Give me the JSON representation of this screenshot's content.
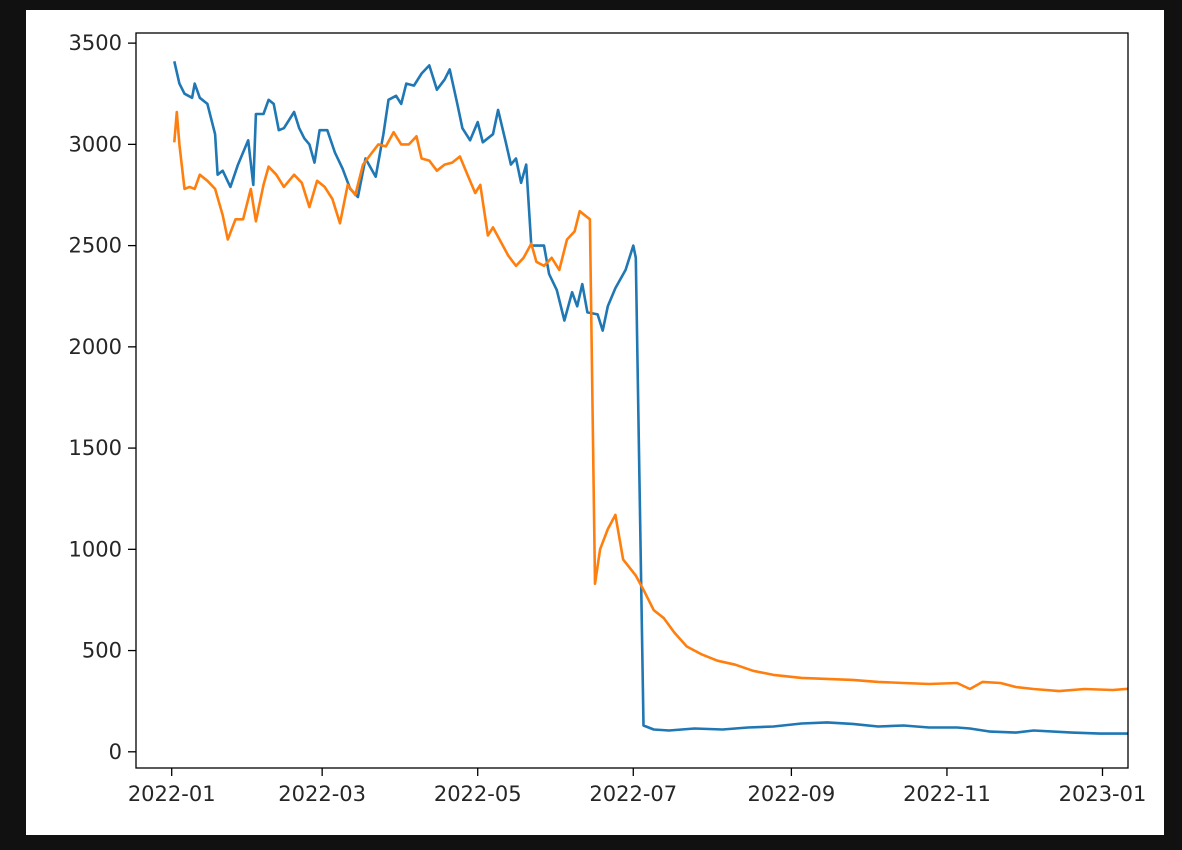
{
  "chart_data": {
    "type": "line",
    "title": "",
    "xlabel": "",
    "ylabel": "",
    "xlim": [
      "2021-12-18",
      "2023-01-11"
    ],
    "ylim": [
      -80,
      3550
    ],
    "xticks": [
      {
        "value": "2022-01-01",
        "label": "2022-01"
      },
      {
        "value": "2022-03-01",
        "label": "2022-03"
      },
      {
        "value": "2022-05-01",
        "label": "2022-05"
      },
      {
        "value": "2022-07-01",
        "label": "2022-07"
      },
      {
        "value": "2022-09-01",
        "label": "2022-09"
      },
      {
        "value": "2022-11-01",
        "label": "2022-11"
      },
      {
        "value": "2023-01-01",
        "label": "2023-01"
      }
    ],
    "yticks": [
      {
        "value": 0,
        "label": "0"
      },
      {
        "value": 500,
        "label": "500"
      },
      {
        "value": 1000,
        "label": "1000"
      },
      {
        "value": 1500,
        "label": "1500"
      },
      {
        "value": 2000,
        "label": "2000"
      },
      {
        "value": 2500,
        "label": "2500"
      },
      {
        "value": 3000,
        "label": "3000"
      },
      {
        "value": 3500,
        "label": "3500"
      }
    ],
    "grid": false,
    "legend": "none",
    "series": [
      {
        "color": "#1f77b4",
        "points": [
          [
            "2022-01-02",
            3410
          ],
          [
            "2022-01-04",
            3300
          ],
          [
            "2022-01-06",
            3250
          ],
          [
            "2022-01-09",
            3230
          ],
          [
            "2022-01-10",
            3300
          ],
          [
            "2022-01-12",
            3230
          ],
          [
            "2022-01-15",
            3200
          ],
          [
            "2022-01-18",
            3050
          ],
          [
            "2022-01-19",
            2850
          ],
          [
            "2022-01-21",
            2870
          ],
          [
            "2022-01-24",
            2790
          ],
          [
            "2022-01-27",
            2900
          ],
          [
            "2022-01-31",
            3020
          ],
          [
            "2022-02-02",
            2800
          ],
          [
            "2022-02-03",
            3150
          ],
          [
            "2022-02-06",
            3150
          ],
          [
            "2022-02-08",
            3220
          ],
          [
            "2022-02-10",
            3200
          ],
          [
            "2022-02-12",
            3070
          ],
          [
            "2022-02-14",
            3080
          ],
          [
            "2022-02-18",
            3160
          ],
          [
            "2022-02-20",
            3080
          ],
          [
            "2022-02-22",
            3030
          ],
          [
            "2022-02-24",
            3000
          ],
          [
            "2022-02-26",
            2910
          ],
          [
            "2022-02-28",
            3070
          ],
          [
            "2022-03-03",
            3070
          ],
          [
            "2022-03-06",
            2960
          ],
          [
            "2022-03-09",
            2880
          ],
          [
            "2022-03-12",
            2780
          ],
          [
            "2022-03-15",
            2740
          ],
          [
            "2022-03-18",
            2930
          ],
          [
            "2022-03-22",
            2840
          ],
          [
            "2022-03-25",
            3050
          ],
          [
            "2022-03-27",
            3220
          ],
          [
            "2022-03-30",
            3240
          ],
          [
            "2022-04-01",
            3200
          ],
          [
            "2022-04-03",
            3300
          ],
          [
            "2022-04-06",
            3290
          ],
          [
            "2022-04-09",
            3350
          ],
          [
            "2022-04-12",
            3390
          ],
          [
            "2022-04-15",
            3270
          ],
          [
            "2022-04-18",
            3320
          ],
          [
            "2022-04-20",
            3370
          ],
          [
            "2022-04-23",
            3200
          ],
          [
            "2022-04-25",
            3080
          ],
          [
            "2022-04-28",
            3020
          ],
          [
            "2022-05-01",
            3110
          ],
          [
            "2022-05-03",
            3010
          ],
          [
            "2022-05-07",
            3050
          ],
          [
            "2022-05-09",
            3170
          ],
          [
            "2022-05-12",
            3010
          ],
          [
            "2022-05-14",
            2900
          ],
          [
            "2022-05-16",
            2930
          ],
          [
            "2022-05-18",
            2810
          ],
          [
            "2022-05-20",
            2900
          ],
          [
            "2022-05-22",
            2500
          ],
          [
            "2022-05-27",
            2500
          ],
          [
            "2022-05-29",
            2360
          ],
          [
            "2022-06-01",
            2280
          ],
          [
            "2022-06-04",
            2130
          ],
          [
            "2022-06-07",
            2270
          ],
          [
            "2022-06-09",
            2200
          ],
          [
            "2022-06-11",
            2310
          ],
          [
            "2022-06-13",
            2170
          ],
          [
            "2022-06-17",
            2160
          ],
          [
            "2022-06-19",
            2080
          ],
          [
            "2022-06-21",
            2200
          ],
          [
            "2022-06-24",
            2290
          ],
          [
            "2022-06-28",
            2380
          ],
          [
            "2022-07-01",
            2500
          ],
          [
            "2022-07-02",
            2440
          ],
          [
            "2022-07-05",
            130
          ],
          [
            "2022-07-09",
            110
          ],
          [
            "2022-07-15",
            105
          ],
          [
            "2022-07-25",
            115
          ],
          [
            "2022-08-05",
            110
          ],
          [
            "2022-08-15",
            120
          ],
          [
            "2022-08-25",
            125
          ],
          [
            "2022-09-05",
            140
          ],
          [
            "2022-09-15",
            145
          ],
          [
            "2022-09-25",
            138
          ],
          [
            "2022-10-05",
            125
          ],
          [
            "2022-10-15",
            130
          ],
          [
            "2022-10-25",
            120
          ],
          [
            "2022-11-05",
            120
          ],
          [
            "2022-11-10",
            115
          ],
          [
            "2022-11-18",
            100
          ],
          [
            "2022-11-28",
            95
          ],
          [
            "2022-12-05",
            105
          ],
          [
            "2022-12-20",
            95
          ],
          [
            "2022-12-31",
            90
          ],
          [
            "2023-01-15",
            90
          ],
          [
            "2023-01-28",
            85
          ]
        ]
      },
      {
        "color": "#ff7f0e",
        "points": [
          [
            "2022-01-02",
            3010
          ],
          [
            "2022-01-03",
            3160
          ],
          [
            "2022-01-04",
            3000
          ],
          [
            "2022-01-06",
            2780
          ],
          [
            "2022-01-08",
            2790
          ],
          [
            "2022-01-10",
            2780
          ],
          [
            "2022-01-12",
            2850
          ],
          [
            "2022-01-15",
            2820
          ],
          [
            "2022-01-18",
            2780
          ],
          [
            "2022-01-21",
            2650
          ],
          [
            "2022-01-23",
            2530
          ],
          [
            "2022-01-26",
            2630
          ],
          [
            "2022-01-29",
            2630
          ],
          [
            "2022-02-01",
            2780
          ],
          [
            "2022-02-03",
            2620
          ],
          [
            "2022-02-06",
            2800
          ],
          [
            "2022-02-08",
            2890
          ],
          [
            "2022-02-11",
            2850
          ],
          [
            "2022-02-14",
            2790
          ],
          [
            "2022-02-18",
            2850
          ],
          [
            "2022-02-21",
            2810
          ],
          [
            "2022-02-24",
            2690
          ],
          [
            "2022-02-27",
            2820
          ],
          [
            "2022-03-02",
            2790
          ],
          [
            "2022-03-05",
            2730
          ],
          [
            "2022-03-08",
            2610
          ],
          [
            "2022-03-11",
            2800
          ],
          [
            "2022-03-14",
            2750
          ],
          [
            "2022-03-17",
            2900
          ],
          [
            "2022-03-20",
            2950
          ],
          [
            "2022-03-23",
            3000
          ],
          [
            "2022-03-26",
            2990
          ],
          [
            "2022-03-29",
            3060
          ],
          [
            "2022-04-01",
            3000
          ],
          [
            "2022-04-04",
            3000
          ],
          [
            "2022-04-07",
            3040
          ],
          [
            "2022-04-09",
            2930
          ],
          [
            "2022-04-12",
            2920
          ],
          [
            "2022-04-15",
            2870
          ],
          [
            "2022-04-18",
            2900
          ],
          [
            "2022-04-21",
            2910
          ],
          [
            "2022-04-24",
            2940
          ],
          [
            "2022-04-27",
            2850
          ],
          [
            "2022-04-30",
            2760
          ],
          [
            "2022-05-02",
            2800
          ],
          [
            "2022-05-05",
            2550
          ],
          [
            "2022-05-07",
            2590
          ],
          [
            "2022-05-10",
            2520
          ],
          [
            "2022-05-13",
            2450
          ],
          [
            "2022-05-16",
            2400
          ],
          [
            "2022-05-19",
            2440
          ],
          [
            "2022-05-22",
            2510
          ],
          [
            "2022-05-24",
            2420
          ],
          [
            "2022-05-27",
            2400
          ],
          [
            "2022-05-30",
            2440
          ],
          [
            "2022-06-02",
            2380
          ],
          [
            "2022-06-05",
            2530
          ],
          [
            "2022-06-08",
            2570
          ],
          [
            "2022-06-10",
            2670
          ],
          [
            "2022-06-14",
            2630
          ],
          [
            "2022-06-16",
            830
          ],
          [
            "2022-06-18",
            1000
          ],
          [
            "2022-06-21",
            1100
          ],
          [
            "2022-06-24",
            1170
          ],
          [
            "2022-06-27",
            950
          ],
          [
            "2022-07-02",
            870
          ],
          [
            "2022-07-05",
            800
          ],
          [
            "2022-07-09",
            700
          ],
          [
            "2022-07-13",
            660
          ],
          [
            "2022-07-17",
            590
          ],
          [
            "2022-07-22",
            520
          ],
          [
            "2022-07-28",
            480
          ],
          [
            "2022-08-03",
            450
          ],
          [
            "2022-08-10",
            430
          ],
          [
            "2022-08-17",
            400
          ],
          [
            "2022-08-25",
            380
          ],
          [
            "2022-09-05",
            365
          ],
          [
            "2022-09-15",
            360
          ],
          [
            "2022-09-25",
            355
          ],
          [
            "2022-10-05",
            345
          ],
          [
            "2022-10-15",
            340
          ],
          [
            "2022-10-25",
            335
          ],
          [
            "2022-11-05",
            340
          ],
          [
            "2022-11-10",
            310
          ],
          [
            "2022-11-15",
            345
          ],
          [
            "2022-11-22",
            340
          ],
          [
            "2022-11-28",
            320
          ],
          [
            "2022-12-05",
            310
          ],
          [
            "2022-12-15",
            300
          ],
          [
            "2022-12-25",
            310
          ],
          [
            "2023-01-05",
            305
          ],
          [
            "2023-01-15",
            315
          ],
          [
            "2023-01-28",
            305
          ]
        ]
      }
    ]
  }
}
